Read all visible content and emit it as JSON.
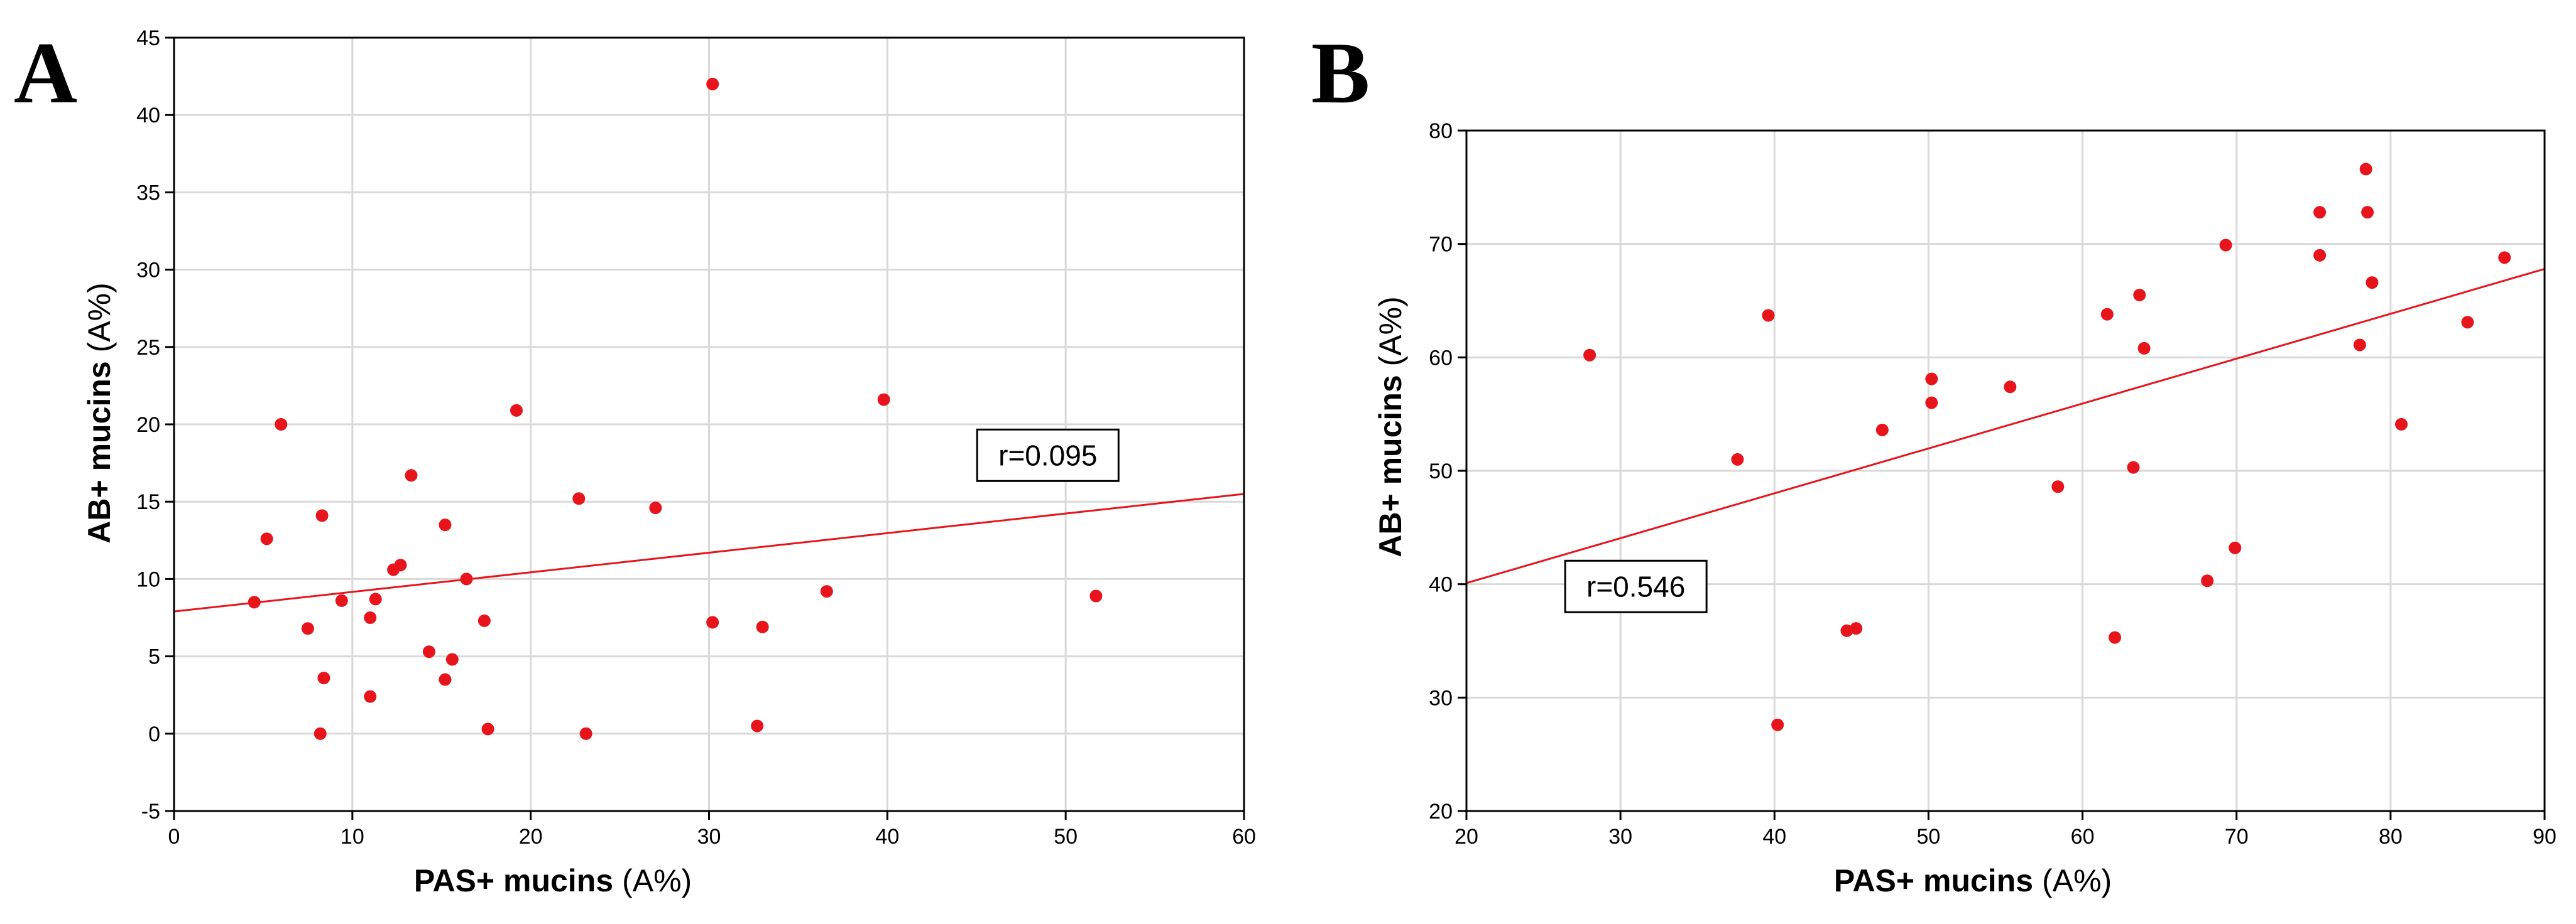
{
  "chart_data": [
    {
      "panel_label": "A",
      "type": "scatter",
      "xlabel": "PAS+ mucins (A%)",
      "ylabel": "AB+ mucins (A%)",
      "xlabel_parts": [
        "PAS+ mucins",
        "(A%)"
      ],
      "ylabel_parts": [
        "AB+ mucins",
        "(A%)"
      ],
      "xlim": [
        0,
        60
      ],
      "ylim": [
        -5,
        45
      ],
      "xticks": [
        0,
        10,
        20,
        30,
        40,
        50,
        60
      ],
      "yticks": [
        -5,
        0,
        5,
        10,
        15,
        20,
        25,
        30,
        35,
        40,
        45
      ],
      "grid": true,
      "annotation": "r=0.095",
      "annotation_at": [
        49,
        18
      ],
      "regression": {
        "x": [
          0,
          60
        ],
        "y": [
          7.9,
          15.5
        ]
      },
      "colors": {
        "points": "#e8141c",
        "line": "#e8141c"
      },
      "points": [
        {
          "x": 4.5,
          "y": 8.5
        },
        {
          "x": 5.2,
          "y": 12.6
        },
        {
          "x": 6.0,
          "y": 20.0
        },
        {
          "x": 7.5,
          "y": 6.8
        },
        {
          "x": 8.2,
          "y": 0.0
        },
        {
          "x": 8.3,
          "y": 14.1
        },
        {
          "x": 8.4,
          "y": 3.6
        },
        {
          "x": 9.4,
          "y": 8.6
        },
        {
          "x": 11.0,
          "y": 2.4
        },
        {
          "x": 11.0,
          "y": 7.5
        },
        {
          "x": 11.3,
          "y": 8.7
        },
        {
          "x": 12.3,
          "y": 10.6
        },
        {
          "x": 12.7,
          "y": 10.9
        },
        {
          "x": 13.3,
          "y": 16.7
        },
        {
          "x": 14.3,
          "y": 5.3
        },
        {
          "x": 15.2,
          "y": 13.5
        },
        {
          "x": 15.2,
          "y": 3.5
        },
        {
          "x": 15.6,
          "y": 4.8
        },
        {
          "x": 16.4,
          "y": 10.0
        },
        {
          "x": 17.4,
          "y": 7.3
        },
        {
          "x": 17.6,
          "y": 0.3
        },
        {
          "x": 19.2,
          "y": 20.9
        },
        {
          "x": 22.7,
          "y": 15.2
        },
        {
          "x": 23.1,
          "y": 0.0
        },
        {
          "x": 27.0,
          "y": 14.6
        },
        {
          "x": 30.2,
          "y": 42.0
        },
        {
          "x": 30.2,
          "y": 7.2
        },
        {
          "x": 32.7,
          "y": 0.5
        },
        {
          "x": 33.0,
          "y": 6.9
        },
        {
          "x": 36.6,
          "y": 9.2
        },
        {
          "x": 39.8,
          "y": 21.6
        },
        {
          "x": 51.7,
          "y": 8.9
        }
      ]
    },
    {
      "panel_label": "B",
      "type": "scatter",
      "xlabel": "PAS+ mucins (A%)",
      "ylabel": "AB+ mucins (A%)",
      "xlabel_parts": [
        "PAS+ mucins",
        "(A%)"
      ],
      "ylabel_parts": [
        "AB+ mucins",
        "(A%)"
      ],
      "xlim": [
        20,
        90
      ],
      "ylim": [
        20,
        80
      ],
      "xticks": [
        20,
        30,
        40,
        50,
        60,
        70,
        80,
        90
      ],
      "yticks": [
        20,
        30,
        40,
        50,
        60,
        70,
        80
      ],
      "grid": true,
      "annotation": "r=0.546",
      "annotation_at": [
        31,
        39.8
      ],
      "regression": {
        "x": [
          20,
          90
        ],
        "y": [
          40.1,
          67.8
        ]
      },
      "colors": {
        "points": "#e8141c",
        "line": "#e8141c"
      },
      "points": [
        {
          "x": 28.0,
          "y": 60.2
        },
        {
          "x": 37.6,
          "y": 51.0
        },
        {
          "x": 39.6,
          "y": 63.7
        },
        {
          "x": 40.2,
          "y": 27.6
        },
        {
          "x": 44.7,
          "y": 35.9
        },
        {
          "x": 45.3,
          "y": 36.1
        },
        {
          "x": 47.0,
          "y": 53.6
        },
        {
          "x": 50.2,
          "y": 58.1
        },
        {
          "x": 50.2,
          "y": 56.0
        },
        {
          "x": 55.3,
          "y": 57.4
        },
        {
          "x": 58.4,
          "y": 48.6
        },
        {
          "x": 61.6,
          "y": 63.8
        },
        {
          "x": 62.1,
          "y": 35.3
        },
        {
          "x": 63.3,
          "y": 50.3
        },
        {
          "x": 63.7,
          "y": 65.5
        },
        {
          "x": 64.0,
          "y": 60.8
        },
        {
          "x": 68.1,
          "y": 40.3
        },
        {
          "x": 69.3,
          "y": 69.9
        },
        {
          "x": 69.9,
          "y": 43.2
        },
        {
          "x": 75.4,
          "y": 72.8
        },
        {
          "x": 75.4,
          "y": 69.0
        },
        {
          "x": 78.0,
          "y": 61.1
        },
        {
          "x": 78.4,
          "y": 76.6
        },
        {
          "x": 78.5,
          "y": 72.8
        },
        {
          "x": 78.8,
          "y": 66.6
        },
        {
          "x": 80.7,
          "y": 54.1
        },
        {
          "x": 85.0,
          "y": 63.1
        },
        {
          "x": 87.4,
          "y": 68.8
        }
      ]
    }
  ]
}
